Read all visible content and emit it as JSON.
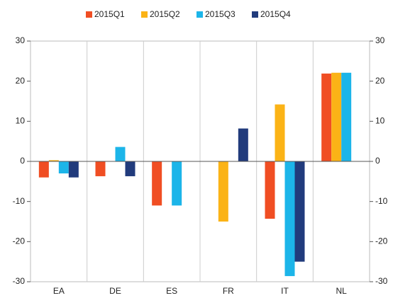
{
  "chart_data": {
    "type": "bar",
    "categories": [
      "EA",
      "DE",
      "ES",
      "FR",
      "IT",
      "NL"
    ],
    "series": [
      {
        "name": "2015Q1",
        "color": "#f04e23",
        "values": [
          -4,
          -3.7,
          -11,
          null,
          -14.3,
          21.9
        ]
      },
      {
        "name": "2015Q2",
        "color": "#fbb316",
        "values": [
          0.3,
          null,
          null,
          -15,
          14.2,
          22.1
        ]
      },
      {
        "name": "2015Q3",
        "color": "#1cb5e9",
        "values": [
          -3,
          3.6,
          -11,
          null,
          -28.6,
          22.1
        ]
      },
      {
        "name": "2015Q4",
        "color": "#213b7c",
        "values": [
          -4,
          -3.7,
          null,
          8.2,
          -25,
          null
        ]
      }
    ],
    "ylim": [
      -30,
      30
    ],
    "yticks": [
      -30,
      -20,
      -10,
      0,
      10,
      20,
      30
    ]
  }
}
